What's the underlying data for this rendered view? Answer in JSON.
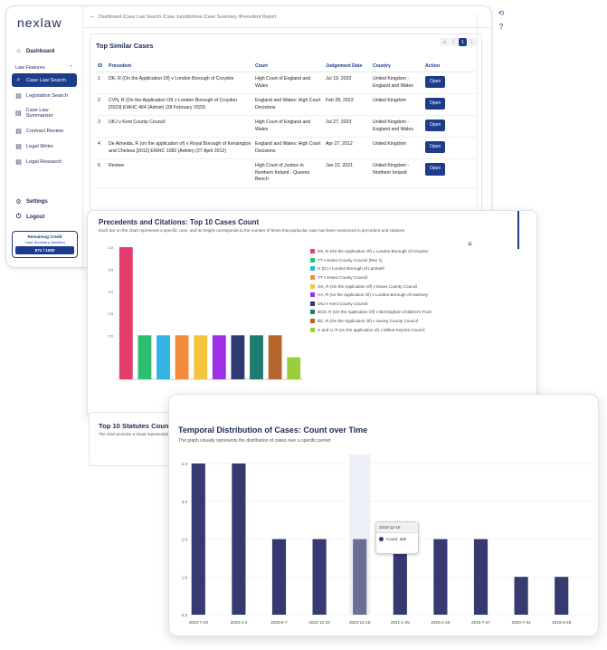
{
  "app": {
    "logo": "nexlaw",
    "nav": {
      "dashboard": "Dashboard",
      "section": "Law Features",
      "items": [
        {
          "label": "Case Law Search",
          "icon": "search-icon",
          "active": true
        },
        {
          "label": "Legislation Search",
          "icon": "document-icon"
        },
        {
          "label": "Case Law Summarizer",
          "icon": "summary-icon"
        },
        {
          "label": "Contract Review",
          "icon": "contract-icon"
        },
        {
          "label": "Legal Writer",
          "icon": "pen-icon"
        },
        {
          "label": "Legal Research",
          "icon": "research-icon"
        }
      ],
      "settings": "Settings",
      "logout": "Logout"
    },
    "credit": {
      "title": "Remaining Credit",
      "subtitle": "Case Summary Question",
      "value": "971 / 1000"
    },
    "breadcrumb": "Dashboard /Case Law Search /Case Jurisdictions /Case Summary /Precedent Report",
    "table_title": "Top Similar Cases",
    "pager": {
      "prev2": "«",
      "prev": "‹",
      "current": "1",
      "next": "›"
    },
    "columns": [
      "ID",
      "Precedent",
      "Court",
      "Judgement Date",
      "Country",
      "Action"
    ],
    "rows": [
      {
        "id": "1",
        "precedent": "DK, R (On the Application Of) v London Borough of Croydon",
        "court": "High Court of England and Wales",
        "date": "Jul 19, 2023",
        "country": "United Kingdom - England and Wales",
        "action": "Open"
      },
      {
        "id": "2",
        "precedent": "CVN, R (On the Application Of) v London Borough of Croydon [2023] EWHC 464 (Admin) (28 February 2023)",
        "court": "England and Wales: High Court Decisions",
        "date": "Feb 28, 2023",
        "country": "United Kingdom",
        "action": "Open"
      },
      {
        "id": "3",
        "precedent": "UKJ v Kent County Council",
        "court": "High Court of England and Wales",
        "date": "Jul 27, 2023",
        "country": "United Kingdom - England and Wales",
        "action": "Open"
      },
      {
        "id": "4",
        "precedent": "De Almeida, R (on the application of) v Royal Borough of Kensington and Chelsea [2012] EWHC 1082 (Admin) (27 April 2012)",
        "court": "England and Wales: High Court Decisions",
        "date": "Apr 27, 2012",
        "country": "United Kingdom",
        "action": "Open"
      },
      {
        "id": "5",
        "precedent": "Review",
        "court": "High Court of Justice in Northern Ireland - Queens Bench",
        "date": "Jan 22, 2021",
        "country": "United Kingdom - Northern Ireland",
        "action": "Open"
      }
    ]
  },
  "precedents_panel": {
    "title": "Precedents and Citations: Top 10 Cases Count",
    "subtitle": "Each bar on the chart represents a specific case, and its height corresponds to the number of times that particular case has been mentioned in precedent and citations",
    "menu_icon": "hamburger-icon"
  },
  "statutes": {
    "title": "Top 10 Statutes Count",
    "subtitle": "The chart provides a visual representation"
  },
  "temporal_panel": {
    "title": "Temporal Distribution of Cases: Count over Time",
    "subtitle": "The graph visually represents the distribution of cases over a specific period",
    "tooltip": {
      "date": "2023-12-16",
      "label": "Count",
      "value": "2.0"
    }
  },
  "chart_data": [
    {
      "type": "bar",
      "title": "Precedents and Citations: Top 10 Cases Count",
      "ylim": [
        1,
        4
      ],
      "yticks": [
        "4.0",
        "3.5",
        "3.0",
        "2.5",
        "2.0"
      ],
      "categories": [
        "DK, R (On the Application Of) v London Borough of Croydon",
        "TT v Essex County Council (Rev 1)",
        "H (D) v London Borough of Lambeth",
        "TT v Essex County Council",
        "GK, R (On the Application Of) v Essex County Council",
        "HA, R (on the Application Of) v London Borough of Hackney",
        "UKJ v Kent County Council",
        "BCD, R (On the Application Of) v Birmingham Children's Trust",
        "BC, R (On the Application Of) v Surrey County Council",
        "U and U, R (on the application of) v Milton Keynes Council"
      ],
      "values": [
        4,
        2,
        2,
        2,
        2,
        2,
        2,
        2,
        2,
        1.5
      ],
      "colors": [
        "#e23d6d",
        "#2dbf71",
        "#33b3e4",
        "#f48a3c",
        "#f6c43e",
        "#9b30e6",
        "#2d3a73",
        "#1f7d6f",
        "#b5652b",
        "#9acf3b"
      ]
    },
    {
      "type": "bar",
      "title": "Temporal Distribution of Cases: Count over Time",
      "ylim": [
        0,
        4
      ],
      "yticks": [
        "4.0",
        "3.0",
        "2.0",
        "1.0",
        "0.0"
      ],
      "categories": [
        "2023-7-19",
        "2023-4-3",
        "2020-6-7",
        "2023-12-22",
        "2023-12-16",
        "2021-1-25",
        "2016-4-26",
        "2016-7-27",
        "2003-7-31",
        "2016-9-28"
      ],
      "values": [
        4,
        4,
        2,
        2,
        2,
        2,
        2,
        2,
        1,
        1
      ],
      "color": "#353a70",
      "highlight_index": 4
    }
  ]
}
